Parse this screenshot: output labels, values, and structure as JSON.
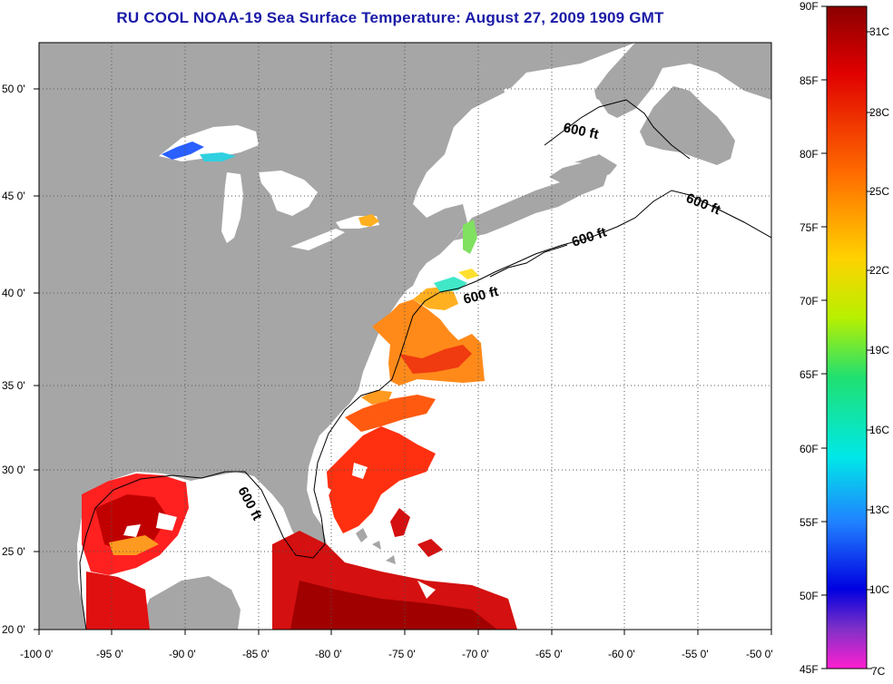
{
  "title": "RU COOL  NOAA-19  Sea Surface Temperature:  August 27, 2009 1909 GMT",
  "lat_labels": [
    "50 0'",
    "45 0'",
    "40 0'",
    "35 0'",
    "30 0'",
    "25 0'",
    "20 0'"
  ],
  "lon_labels": [
    "-100 0'",
    "-95 0'",
    "-90 0'",
    "-85 0'",
    "-80 0'",
    "-75 0'",
    "-70 0'",
    "-65 0'",
    "-60 0'",
    "-55 0'",
    "-50 0'"
  ],
  "isobath_labels": [
    "600 ft",
    "600 ft",
    "600 ft",
    "600 ft",
    "600 ft"
  ],
  "colorbar": {
    "fahrenheit": [
      "90F",
      "85F",
      "80F",
      "75F",
      "70F",
      "65F",
      "60F",
      "55F",
      "50F",
      "45F"
    ],
    "celsius": [
      "31C",
      "28C",
      "25C",
      "22C",
      "19C",
      "16C",
      "13C",
      "10C",
      "7C"
    ]
  },
  "colors": {
    "land": "#a6a6a6",
    "cloud": "#ffffff",
    "warm": "#e01010",
    "hot": "#b00000",
    "title": "#1a1aa8"
  }
}
